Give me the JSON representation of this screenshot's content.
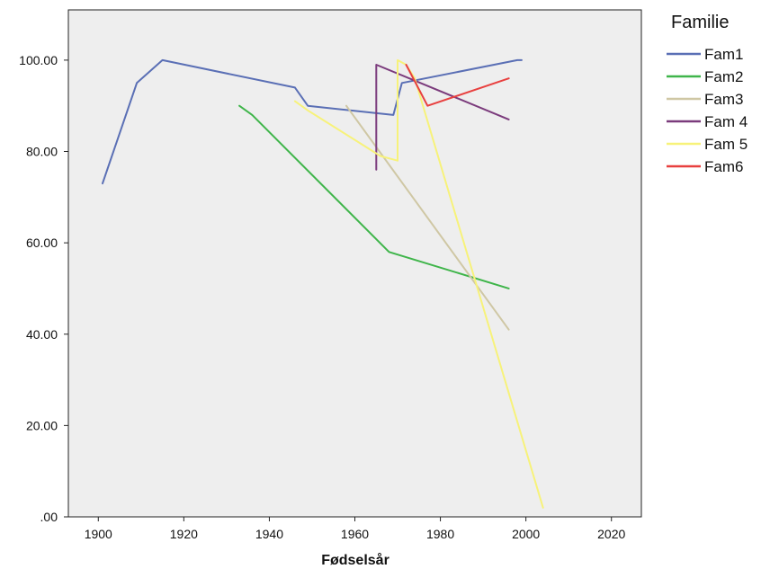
{
  "chart_data": {
    "type": "line",
    "title": "",
    "xlabel": "Fødselsår",
    "ylabel": "",
    "xlim": [
      1893,
      2027
    ],
    "ylim": [
      0,
      111
    ],
    "x_ticks": [
      1900,
      1920,
      1940,
      1960,
      1980,
      2000,
      2020
    ],
    "x_tick_labels": [
      "1900",
      "1920",
      "1940",
      "1960",
      "1980",
      "2000",
      "2020"
    ],
    "y_ticks": [
      0,
      20,
      40,
      60,
      80,
      100
    ],
    "y_tick_labels": [
      ".00",
      "20.00",
      "40.00",
      "60.00",
      "80.00",
      "100.00"
    ],
    "grid": false,
    "plot_background": "#eeeeee",
    "legend": {
      "title": "Familie",
      "placement": "right"
    },
    "series": [
      {
        "name": "Fam1",
        "color": "#5a6fb5",
        "points": [
          [
            1901,
            73
          ],
          [
            1909,
            95
          ],
          [
            1915,
            100
          ],
          [
            1946,
            94
          ],
          [
            1949,
            90
          ],
          [
            1969,
            88
          ],
          [
            1971,
            95
          ],
          [
            1998,
            100
          ],
          [
            1999,
            100
          ]
        ]
      },
      {
        "name": "Fam2",
        "color": "#3fb54a",
        "points": [
          [
            1933,
            90
          ],
          [
            1936,
            88
          ],
          [
            1968,
            58
          ],
          [
            1996,
            50
          ]
        ]
      },
      {
        "name": "Fam3",
        "color": "#cfc7a4",
        "points": [
          [
            1958,
            90
          ],
          [
            1996,
            41
          ]
        ]
      },
      {
        "name": "Fam 4",
        "color": "#7b3b7c",
        "points": [
          [
            1965,
            76
          ],
          [
            1965,
            99
          ],
          [
            1996,
            87
          ]
        ]
      },
      {
        "name": "Fam 5",
        "color": "#f7f27a",
        "points": [
          [
            1946,
            91
          ],
          [
            1949,
            89
          ],
          [
            1966,
            79
          ],
          [
            1970,
            78
          ],
          [
            1970,
            100
          ],
          [
            1972,
            99
          ],
          [
            1974,
            96
          ],
          [
            2004,
            2
          ]
        ]
      },
      {
        "name": "Fam6",
        "color": "#e8403f",
        "points": [
          [
            1972,
            99
          ],
          [
            1977,
            90
          ],
          [
            1996,
            96
          ]
        ]
      }
    ]
  }
}
